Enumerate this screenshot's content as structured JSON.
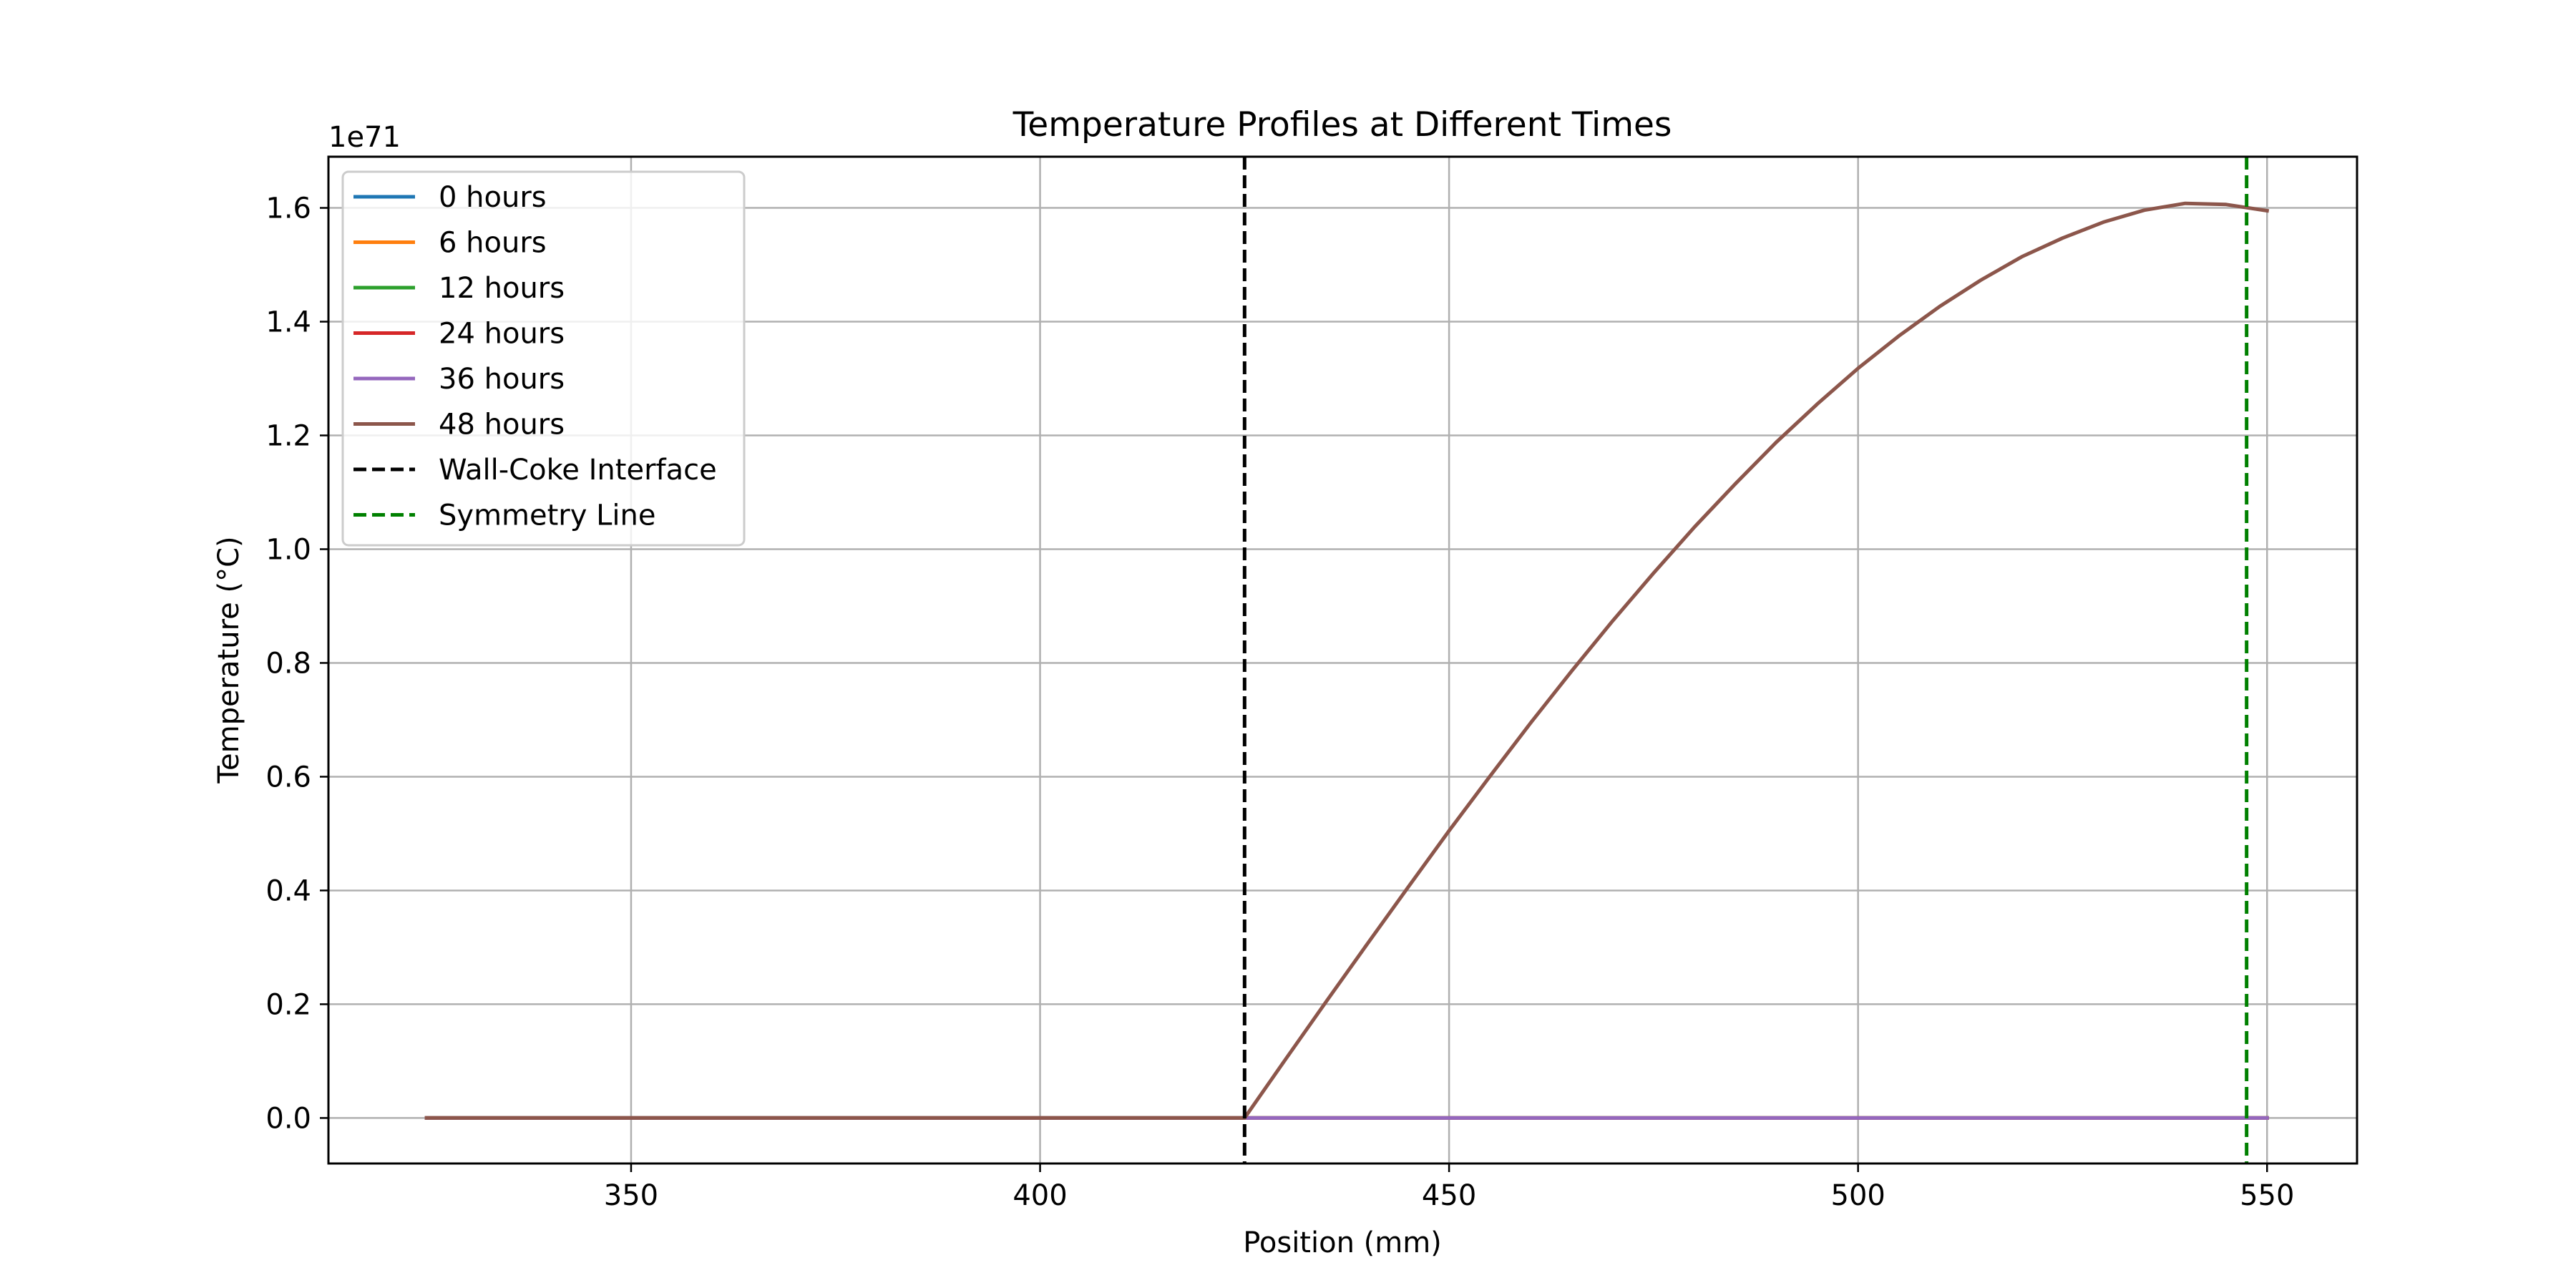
{
  "chart_data": {
    "type": "line",
    "title": "Temperature Profiles at Different Times",
    "xlabel": "Position (mm)",
    "ylabel": "Temperature (°C)",
    "y_offset_label": "1e71",
    "y_scale_factor": 1e+71,
    "xlim": [
      313,
      561
    ],
    "ylim": [
      -0.08,
      1.69
    ],
    "xticks": [
      350,
      400,
      450,
      500,
      550
    ],
    "yticks": [
      0.0,
      0.2,
      0.4,
      0.6,
      0.8,
      1.0,
      1.2,
      1.4,
      1.6
    ],
    "ytick_labels": [
      "0.0",
      "0.2",
      "0.4",
      "0.6",
      "0.8",
      "1.0",
      "1.2",
      "1.4",
      "1.6"
    ],
    "grid": true,
    "legend_position": "top-left",
    "x": [
      325,
      330,
      335,
      340,
      345,
      350,
      355,
      360,
      365,
      370,
      375,
      380,
      385,
      390,
      395,
      400,
      405,
      410,
      415,
      420,
      425,
      430,
      435,
      440,
      445,
      450,
      455,
      460,
      465,
      470,
      475,
      480,
      485,
      490,
      495,
      500,
      505,
      510,
      515,
      520,
      525,
      530,
      535,
      540,
      545,
      550
    ],
    "series": [
      {
        "name": "0 hours",
        "color": "#1f77b4",
        "values": [
          0,
          0,
          0,
          0,
          0,
          0,
          0,
          0,
          0,
          0,
          0,
          0,
          0,
          0,
          0,
          0,
          0,
          0,
          0,
          0,
          0,
          0,
          0,
          0,
          0,
          0,
          0,
          0,
          0,
          0,
          0,
          0,
          0,
          0,
          0,
          0,
          0,
          0,
          0,
          0,
          0,
          0,
          0,
          0,
          0,
          0
        ]
      },
      {
        "name": "6 hours",
        "color": "#ff7f0e",
        "values": [
          0,
          0,
          0,
          0,
          0,
          0,
          0,
          0,
          0,
          0,
          0,
          0,
          0,
          0,
          0,
          0,
          0,
          0,
          0,
          0,
          0,
          0,
          0,
          0,
          0,
          0,
          0,
          0,
          0,
          0,
          0,
          0,
          0,
          0,
          0,
          0,
          0,
          0,
          0,
          0,
          0,
          0,
          0,
          0,
          0,
          0
        ]
      },
      {
        "name": "12 hours",
        "color": "#2ca02c",
        "values": [
          0,
          0,
          0,
          0,
          0,
          0,
          0,
          0,
          0,
          0,
          0,
          0,
          0,
          0,
          0,
          0,
          0,
          0,
          0,
          0,
          0,
          0,
          0,
          0,
          0,
          0,
          0,
          0,
          0,
          0,
          0,
          0,
          0,
          0,
          0,
          0,
          0,
          0,
          0,
          0,
          0,
          0,
          0,
          0,
          0,
          0
        ]
      },
      {
        "name": "24 hours",
        "color": "#d62728",
        "values": [
          0,
          0,
          0,
          0,
          0,
          0,
          0,
          0,
          0,
          0,
          0,
          0,
          0,
          0,
          0,
          0,
          0,
          0,
          0,
          0,
          0,
          0,
          0,
          0,
          0,
          0,
          0,
          0,
          0,
          0,
          0,
          0,
          0,
          0,
          0,
          0,
          0,
          0,
          0,
          0,
          0,
          0,
          0,
          0,
          0,
          0
        ]
      },
      {
        "name": "36 hours",
        "color": "#9467bd",
        "values": [
          0,
          0,
          0,
          0,
          0,
          0,
          0,
          0,
          0,
          0,
          0,
          0,
          0,
          0,
          0,
          0,
          0,
          0,
          0,
          0,
          0,
          0,
          0,
          0,
          0,
          0,
          0,
          0,
          0,
          0,
          0,
          0,
          0,
          0,
          0,
          0,
          0,
          0,
          0,
          0,
          0,
          0,
          0,
          0,
          0,
          0
        ]
      },
      {
        "name": "48 hours",
        "color": "#8c564b",
        "values": [
          0,
          0,
          0,
          0,
          0,
          0,
          0,
          0,
          0,
          0,
          0,
          0,
          0,
          0,
          0,
          0,
          0,
          0,
          0,
          0,
          0,
          0.103,
          0.205,
          0.306,
          0.406,
          0.505,
          0.601,
          0.695,
          0.786,
          0.874,
          0.958,
          1.039,
          1.115,
          1.188,
          1.255,
          1.318,
          1.375,
          1.427,
          1.473,
          1.514,
          1.547,
          1.575,
          1.596,
          1.608,
          1.606,
          1.595
        ]
      }
    ],
    "reference_lines": [
      {
        "name": "Wall-Coke Interface",
        "x": 425,
        "color": "#000000",
        "style": "dashed"
      },
      {
        "name": "Symmetry Line",
        "x": 547.5,
        "color": "#008000",
        "style": "dashed"
      }
    ]
  }
}
